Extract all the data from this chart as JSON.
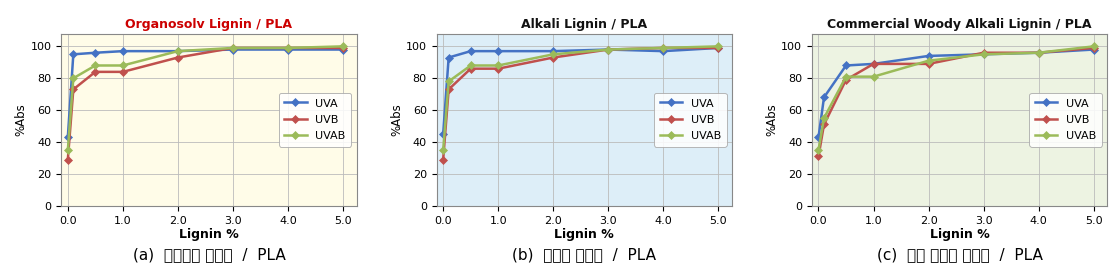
{
  "charts": [
    {
      "title": "Organosolv Lignin / PLA",
      "title_color": "#cc0000",
      "bg_color": "#fffce8",
      "caption": "(a)  유기용제 리그닌  /  PLA"
    },
    {
      "title": "Alkali Lignin / PLA",
      "title_color": "#111111",
      "bg_color": "#ddeef8",
      "caption": "(b)  알칼리 리그닌  /  PLA"
    },
    {
      "title": "Commercial Woody Alkali Lignin / PLA",
      "title_color": "#111111",
      "bg_color": "#edf3e2",
      "caption": "(c)  목재 알칼리 리그닌  /  PLA"
    }
  ],
  "x_values": [
    0.0,
    0.1,
    0.5,
    1.0,
    2.0,
    3.0,
    4.0,
    5.0
  ],
  "series": [
    {
      "name": "UVA",
      "color": "#4472c4",
      "data": [
        [
          43,
          95,
          96,
          97,
          97,
          98,
          98,
          98
        ],
        [
          45,
          93,
          97,
          97,
          97,
          98,
          97,
          99
        ],
        [
          43,
          68,
          88,
          89,
          94,
          95,
          96,
          98
        ]
      ]
    },
    {
      "name": "UVB",
      "color": "#c0504d",
      "data": [
        [
          29,
          73,
          84,
          84,
          93,
          99,
          99,
          99
        ],
        [
          29,
          73,
          86,
          86,
          93,
          98,
          99,
          99
        ],
        [
          31,
          51,
          79,
          89,
          89,
          96,
          96,
          99
        ]
      ]
    },
    {
      "name": "UVAB",
      "color": "#9bbb59",
      "data": [
        [
          35,
          80,
          88,
          88,
          97,
          99,
          99,
          100
        ],
        [
          35,
          78,
          88,
          88,
          95,
          98,
          99,
          100
        ],
        [
          35,
          55,
          81,
          81,
          91,
          95,
          96,
          100
        ]
      ]
    }
  ],
  "xlabel": "Lignin %",
  "ylabel": "%Abs",
  "xlim": [
    -0.12,
    5.25
  ],
  "ylim": [
    0,
    108
  ],
  "xticks": [
    0.0,
    1.0,
    2.0,
    3.0,
    4.0,
    5.0
  ],
  "yticks": [
    0,
    20,
    40,
    60,
    80,
    100
  ],
  "grid_color": "#bbbbbb",
  "fig_bg": "#ffffff",
  "legend_loc": "center right",
  "legend_bbox": null,
  "marker": "D",
  "markersize": 4.0,
  "linewidth": 1.8
}
